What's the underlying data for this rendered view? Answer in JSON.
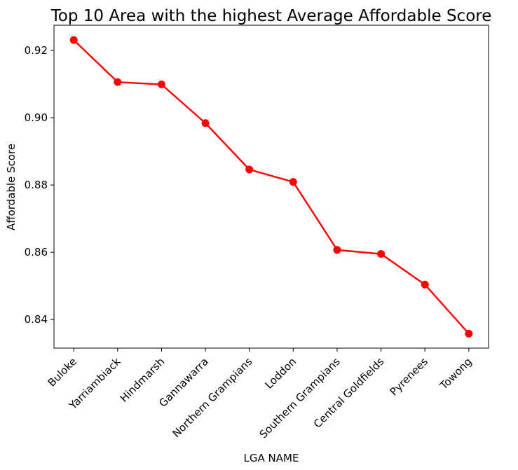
{
  "chart_data": {
    "type": "line",
    "title": "Top 10 Area with the highest Average Affordable Score",
    "xlabel": "LGA NAME",
    "ylabel": "Affordable Score",
    "categories": [
      "Buloke",
      "Yarriambiack",
      "Hindmarsh",
      "Gannawarra",
      "Northern Grampians",
      "Loddon",
      "Southern Grampians",
      "Central Goldfields",
      "Pyrenees",
      "Towong"
    ],
    "values": [
      0.9231,
      0.9106,
      0.9099,
      0.8984,
      0.8846,
      0.8809,
      0.8607,
      0.8595,
      0.8504,
      0.8358
    ],
    "y_ticks": [
      0.84,
      0.86,
      0.88,
      0.9,
      0.92
    ],
    "y_tick_labels": [
      "0.84",
      "0.86",
      "0.88",
      "0.90",
      "0.92"
    ],
    "ylim": [
      0.8315,
      0.9275
    ],
    "grid": false,
    "legend": "none",
    "line_color": "#ff0000",
    "marker": "circle"
  }
}
